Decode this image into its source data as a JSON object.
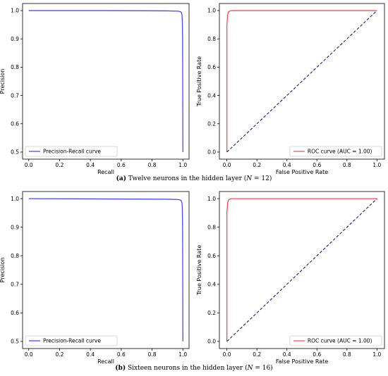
{
  "chart_data": [
    {
      "id": "pr12",
      "type": "line",
      "xlabel": "Recall",
      "ylabel": "Precision",
      "xlim": [
        -0.04,
        1.04
      ],
      "ylim": [
        0.475,
        1.025
      ],
      "xticks": [
        "0.0",
        "0.2",
        "0.4",
        "0.6",
        "0.8",
        "1.0"
      ],
      "yticks": [
        "0.5",
        "0.6",
        "0.7",
        "0.8",
        "0.9",
        "1.0"
      ],
      "legend_position": "bottom-left",
      "series": [
        {
          "name": "Precision-Recall curve",
          "color": "#4a4af0",
          "x": [
            0.0,
            0.5,
            0.9,
            0.97,
            0.985,
            0.99,
            0.994,
            0.996,
            0.998,
            1.0
          ],
          "y": [
            1.0,
            1.0,
            0.999,
            0.998,
            0.996,
            0.993,
            0.985,
            0.97,
            0.9,
            0.5
          ]
        }
      ]
    },
    {
      "id": "roc12",
      "type": "line",
      "xlabel": "False Positive Rate",
      "ylabel": "True Positive Rate",
      "xlim": [
        -0.05,
        1.05
      ],
      "ylim": [
        -0.05,
        1.05
      ],
      "xticks": [
        "0.0",
        "0.2",
        "0.4",
        "0.6",
        "0.8",
        "1.0"
      ],
      "yticks": [
        "0.0",
        "0.2",
        "0.4",
        "0.6",
        "0.8",
        "1.0"
      ],
      "legend_position": "bottom-right",
      "series": [
        {
          "name": "ROC curve (AUC = 1.00)",
          "color": "#f05050",
          "x": [
            0.0,
            0.0,
            0.005,
            0.01,
            0.02,
            0.03,
            1.0
          ],
          "y": [
            0.0,
            0.9,
            0.97,
            0.99,
            0.997,
            1.0,
            1.0
          ]
        },
        {
          "name": "",
          "color": "#1a1a8c",
          "dashed": true,
          "x": [
            0,
            1
          ],
          "y": [
            0,
            1
          ]
        }
      ]
    },
    {
      "id": "pr16",
      "type": "line",
      "xlabel": "Recall",
      "ylabel": "Precision",
      "xlim": [
        -0.04,
        1.04
      ],
      "ylim": [
        0.475,
        1.025
      ],
      "xticks": [
        "0.0",
        "0.2",
        "0.4",
        "0.6",
        "0.8",
        "1.0"
      ],
      "yticks": [
        "0.5",
        "0.6",
        "0.7",
        "0.8",
        "0.9",
        "1.0"
      ],
      "legend_position": "bottom-left",
      "series": [
        {
          "name": "Precision-Recall curve",
          "color": "#4a4af0",
          "x": [
            0.0,
            0.5,
            0.9,
            0.97,
            0.985,
            0.99,
            0.994,
            0.996,
            0.998,
            1.0
          ],
          "y": [
            1.0,
            0.999,
            0.998,
            0.997,
            0.995,
            0.992,
            0.985,
            0.97,
            0.9,
            0.5
          ]
        }
      ]
    },
    {
      "id": "roc16",
      "type": "line",
      "xlabel": "False Positive Rate",
      "ylabel": "True Positive Rate",
      "xlim": [
        -0.05,
        1.05
      ],
      "ylim": [
        -0.05,
        1.05
      ],
      "xticks": [
        "0.0",
        "0.2",
        "0.4",
        "0.6",
        "0.8",
        "1.0"
      ],
      "yticks": [
        "0.0",
        "0.2",
        "0.4",
        "0.6",
        "0.8",
        "1.0"
      ],
      "legend_position": "bottom-right",
      "series": [
        {
          "name": "ROC curve (AUC = 1.00)",
          "color": "#f05050",
          "x": [
            0.0,
            0.0,
            0.005,
            0.01,
            0.02,
            0.03,
            1.0
          ],
          "y": [
            0.0,
            0.9,
            0.97,
            0.99,
            0.997,
            1.0,
            1.0
          ]
        },
        {
          "name": "",
          "color": "#1a1a8c",
          "dashed": true,
          "x": [
            0,
            1
          ],
          "y": [
            0,
            1
          ]
        }
      ]
    }
  ],
  "captions": {
    "a": {
      "label": "(a)",
      "text": " Twelve neurons in the hidden layer (",
      "var": "N",
      "tail": " = 12)"
    },
    "b": {
      "label": "(b)",
      "text": " Sixteen neurons in the hidden layer (",
      "var": "N",
      "tail": " = 16)"
    }
  }
}
